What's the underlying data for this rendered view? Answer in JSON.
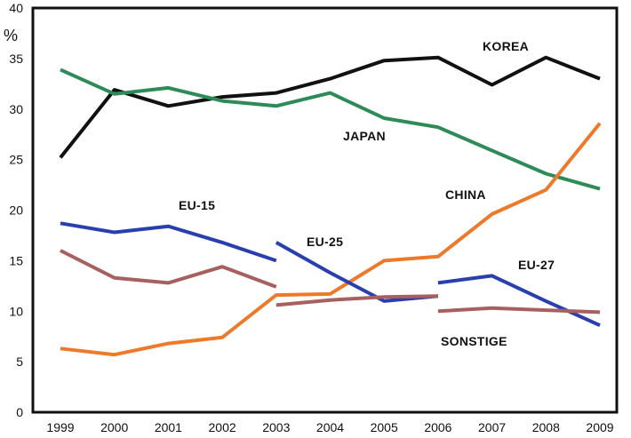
{
  "chart_data": {
    "type": "line",
    "title": "",
    "xlabel": "",
    "ylabel": "%",
    "ylim": [
      0,
      40
    ],
    "yticks": [
      "0",
      "5",
      "10",
      "15",
      "20",
      "25",
      "30",
      "35",
      "40"
    ],
    "grid": false,
    "categories": [
      "1999",
      "2000",
      "2001",
      "2002",
      "2003",
      "2004",
      "2005",
      "2006",
      "2007",
      "2008",
      "2009"
    ],
    "series": [
      {
        "name": "KOREA",
        "color": "#111111",
        "values": [
          25.2,
          31.9,
          30.3,
          31.2,
          31.6,
          33.0,
          34.8,
          35.1,
          32.4,
          35.1,
          33.0
        ]
      },
      {
        "name": "JAPAN",
        "color": "#2e8b57",
        "values": [
          33.9,
          31.5,
          32.1,
          30.8,
          30.3,
          31.6,
          29.1,
          28.2,
          25.9,
          23.6,
          22.1
        ]
      },
      {
        "name": "CHINA",
        "color": "#ed7a2a",
        "values": [
          6.3,
          5.7,
          6.8,
          7.4,
          11.6,
          11.7,
          15.0,
          15.4,
          19.6,
          22.0,
          28.6
        ]
      },
      {
        "name": "EU-15",
        "color": "#2a3fae",
        "values": [
          18.7,
          17.8,
          18.4,
          16.8,
          15.0,
          null,
          null,
          null,
          null,
          null,
          null
        ]
      },
      {
        "name": "EU-25",
        "color": "#2a3fae",
        "values": [
          null,
          null,
          null,
          null,
          16.8,
          13.8,
          11.0,
          11.5,
          null,
          null,
          null
        ]
      },
      {
        "name": "EU-27",
        "color": "#2a3fae",
        "values": [
          null,
          null,
          null,
          null,
          null,
          null,
          null,
          12.8,
          13.5,
          11.0,
          8.6
        ]
      },
      {
        "name": "SONSTIGE",
        "color": "#a66060",
        "segments": [
          {
            "values": [
              16.0,
              13.3,
              12.8,
              14.4,
              12.4,
              null,
              null,
              null,
              null,
              null,
              null
            ]
          },
          {
            "values": [
              null,
              null,
              null,
              null,
              10.6,
              11.1,
              11.4,
              11.5,
              null,
              null,
              null
            ]
          },
          {
            "values": [
              null,
              null,
              null,
              null,
              null,
              null,
              null,
              10.0,
              10.3,
              10.1,
              9.9
            ]
          }
        ]
      }
    ],
    "annotations": [
      "KOREA",
      "JAPAN",
      "CHINA",
      "EU-15",
      "EU-25",
      "EU-27",
      "SONSTIGE"
    ]
  }
}
